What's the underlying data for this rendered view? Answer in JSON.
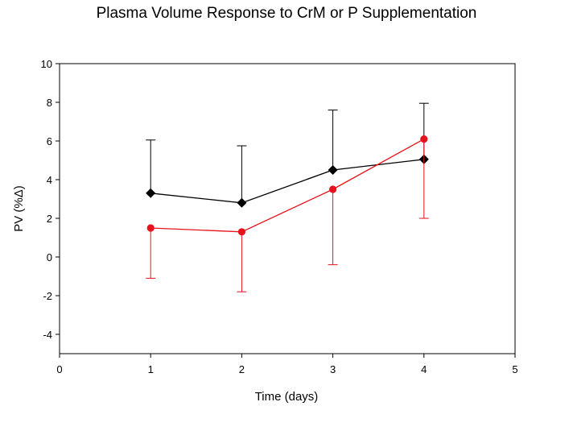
{
  "chart_data": {
    "type": "line",
    "title": "Plasma Volume Response to CrM or P Supplementation",
    "xlabel": "Time (days)",
    "ylabel": "PV (%Δ)",
    "xlim": [
      0,
      5
    ],
    "ylim": [
      -5,
      10
    ],
    "xticks": [
      0,
      1,
      2,
      3,
      4,
      5
    ],
    "yticks": [
      -4,
      -2,
      0,
      2,
      4,
      6,
      8,
      10
    ],
    "x_tick_labels": [
      "0",
      "1",
      "2",
      "3",
      "4",
      "5"
    ],
    "y_tick_labels": [
      "-4",
      "-2",
      "0",
      "2",
      "4",
      "6",
      "8",
      "10"
    ],
    "grid": false,
    "legend": "none",
    "series": [
      {
        "color": "#000000",
        "marker": "diamond",
        "error_direction": "up",
        "x": [
          1,
          2,
          3,
          4
        ],
        "y": [
          3.3,
          2.8,
          4.5,
          5.05
        ],
        "error": [
          2.75,
          2.95,
          3.1,
          2.9
        ]
      },
      {
        "color": "#e8121c",
        "marker": "circle",
        "error_direction": "down",
        "x": [
          1,
          2,
          3,
          4
        ],
        "y": [
          1.5,
          1.3,
          3.5,
          6.1
        ],
        "error": [
          2.6,
          3.1,
          3.9,
          4.1
        ]
      }
    ]
  }
}
